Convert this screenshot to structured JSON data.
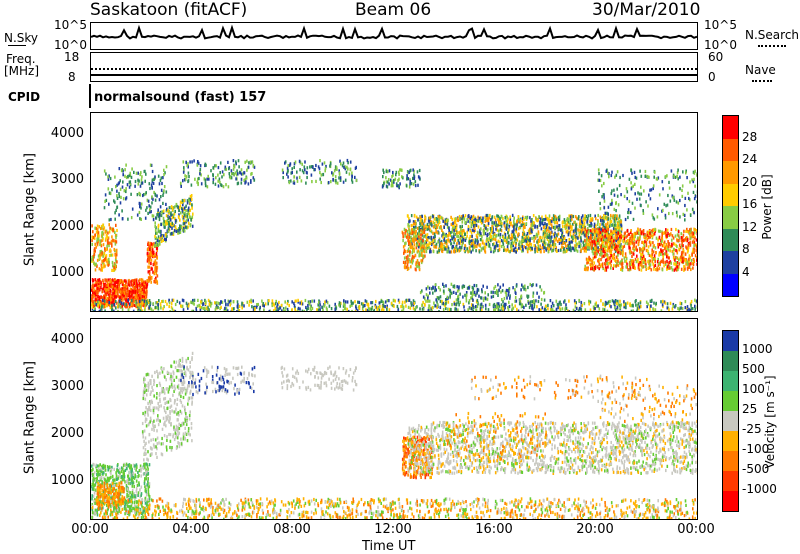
{
  "header": {
    "station": "Saskatoon (fitACF)",
    "beam": "Beam 06",
    "date": "30/Mar/2010"
  },
  "top_panels": {
    "nsky_label": "N.Sky",
    "nsearch_label": "N.Search",
    "freq_label_1": "Freq.",
    "freq_label_2": "[MHz]",
    "nave_label": "Nave",
    "cpid_label": "CPID",
    "cpid_value": "normalsound (fast) 157",
    "noise_left_ticks": [
      "10^5",
      "10^0"
    ],
    "noise_right_ticks": [
      "10^5",
      "10^0"
    ],
    "freq_left_ticks": [
      "18",
      "8"
    ],
    "freq_right_ticks": [
      "60",
      "0"
    ]
  },
  "chart_data": [
    {
      "type": "heatmap",
      "title": "",
      "parameter": "Power",
      "colorbar_label": "Power [dB]",
      "colorbar_ticks": [
        "28",
        "24",
        "20",
        "16",
        "12",
        "8",
        "4"
      ],
      "colorbar_colors": [
        "#ff0000",
        "#ff5a00",
        "#ff9900",
        "#ffcc00",
        "#88cc44",
        "#2e8b57",
        "#1e40a0",
        "#0000ff"
      ],
      "ylabel": "Slant Range [km]",
      "ylim": [
        180,
        4500
      ],
      "yticks": [
        1000,
        2000,
        3000,
        4000
      ],
      "xlabel": "Time UT",
      "xticks": [
        "00:00",
        "04:00",
        "08:00",
        "12:00",
        "16:00",
        "20:00",
        "00:00"
      ]
    },
    {
      "type": "heatmap",
      "title": "",
      "parameter": "Velocity",
      "colorbar_label": "Velocity [m s⁻¹]",
      "colorbar_ticks": [
        "1000",
        "500",
        "100",
        "25",
        "-25",
        "-100",
        "-500",
        "-1000"
      ],
      "colorbar_colors": [
        "#1a3aa6",
        "#2e8b57",
        "#3cb371",
        "#66cc33",
        "#c8c8c0",
        "#ffb000",
        "#ff7a00",
        "#ff3a00",
        "#ff0000"
      ],
      "ylabel": "Slant Range [km]",
      "ylim": [
        180,
        4500
      ],
      "yticks": [
        1000,
        2000,
        3000,
        4000
      ],
      "xlabel": "Time UT",
      "xticks": [
        "00:00",
        "04:00",
        "08:00",
        "12:00",
        "16:00",
        "20:00",
        "00:00"
      ]
    }
  ]
}
